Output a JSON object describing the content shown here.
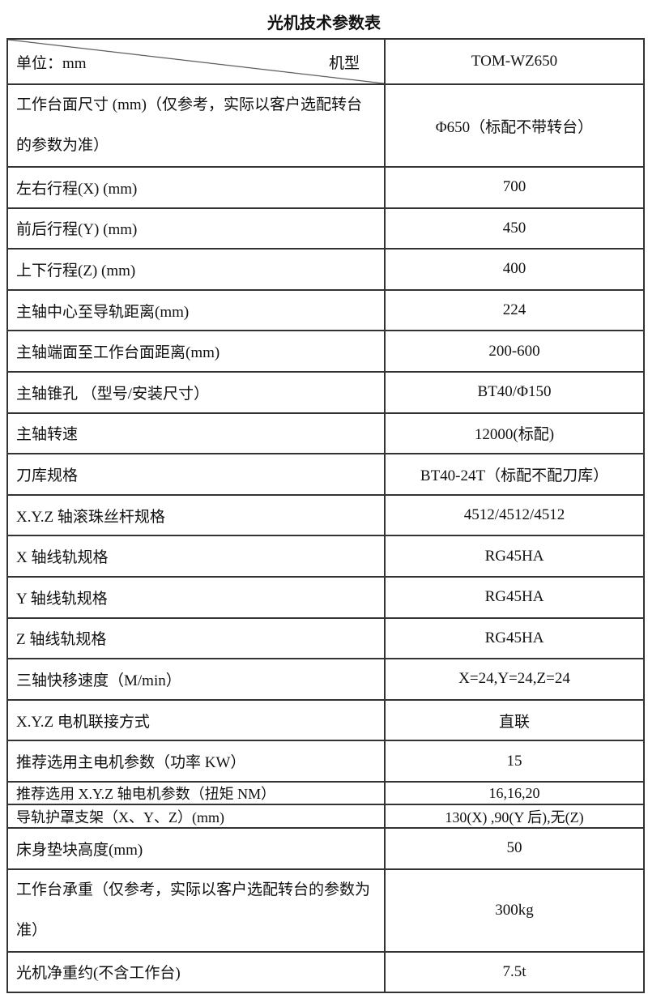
{
  "title": "光机技术参数表",
  "header": {
    "unit": "单位：mm",
    "model_label": "机型",
    "model": "TOM-WZ650"
  },
  "rows": [
    {
      "label": "工作台面尺寸 (mm)（仅参考，实际以客户选配转台的参数为准）",
      "value": "Φ650（标配不带转台）"
    },
    {
      "label": "左右行程(X) (mm)",
      "value": "700"
    },
    {
      "label": "前后行程(Y) (mm)",
      "value": "450"
    },
    {
      "label": "上下行程(Z) (mm)",
      "value": "400"
    },
    {
      "label": "主轴中心至导轨距离(mm)",
      "value": "224"
    },
    {
      "label": "主轴端面至工作台面距离(mm)",
      "value": "200-600"
    },
    {
      "label": "主轴锥孔  （型号/安装尺寸）",
      "value": "BT40/Φ150"
    },
    {
      "label": "主轴转速",
      "value": "12000(标配)"
    },
    {
      "label": "刀库规格",
      "value": "BT40-24T（标配不配刀库）"
    },
    {
      "label": "X.Y.Z 轴滚珠丝杆规格",
      "value": "4512/4512/4512"
    },
    {
      "label": "X 轴线轨规格",
      "value": "RG45HA"
    },
    {
      "label": "Y 轴线轨规格",
      "value": "RG45HA"
    },
    {
      "label": "Z 轴线轨规格",
      "value": "RG45HA"
    },
    {
      "label": "三轴快移速度（M/min）",
      "value": "X=24,Y=24,Z=24"
    },
    {
      "label": "X.Y.Z 电机联接方式",
      "value": "直联"
    },
    {
      "label": "推荐选用主电机参数（功率 KW）",
      "value": "15"
    },
    {
      "label": "推荐选用 X.Y.Z 轴电机参数（扭矩 NM）",
      "value": "16,16,20"
    },
    {
      "label": "导轨护罩支架（X、Y、Z）(mm)",
      "value": "130(X) ,90(Y 后),无(Z)"
    },
    {
      "label": "床身垫块高度(mm)",
      "value": "50"
    },
    {
      "label": "工作台承重（仅参考，实际以客户选配转台的参数为准）",
      "value": "300kg"
    },
    {
      "label": "光机净重约(不含工作台)",
      "value": "7.5t"
    }
  ]
}
